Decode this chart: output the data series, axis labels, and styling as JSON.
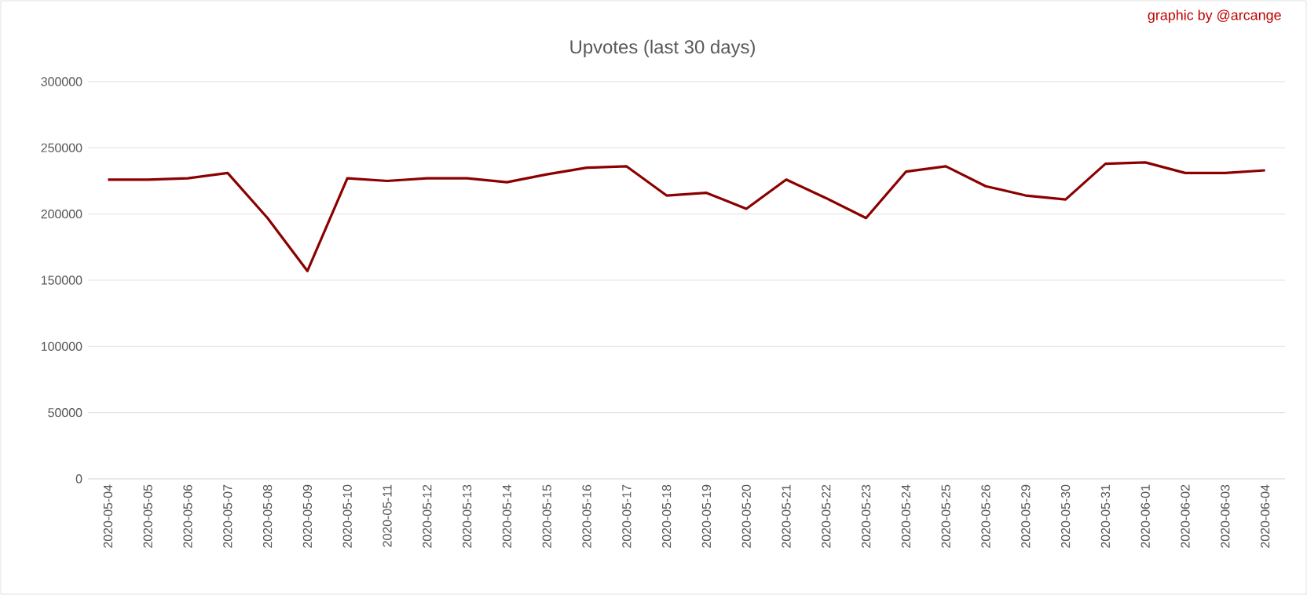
{
  "chart_data": {
    "type": "line",
    "title": "Upvotes (last 30 days)",
    "annotations": [
      "graphic by @arcange"
    ],
    "categories": [
      "2020-05-04",
      "2020-05-05",
      "2020-05-06",
      "2020-05-07",
      "2020-05-08",
      "2020-05-09",
      "2020-05-10",
      "2020-05-11",
      "2020-05-12",
      "2020-05-13",
      "2020-05-14",
      "2020-05-15",
      "2020-05-16",
      "2020-05-17",
      "2020-05-18",
      "2020-05-19",
      "2020-05-20",
      "2020-05-21",
      "2020-05-22",
      "2020-05-23",
      "2020-05-24",
      "2020-05-25",
      "2020-05-26",
      "2020-05-29",
      "2020-05-30",
      "2020-05-31",
      "2020-06-01",
      "2020-06-02",
      "2020-06-03",
      "2020-06-04"
    ],
    "series": [
      {
        "color": "#8b0000",
        "values": [
          226000,
          226000,
          227000,
          231000,
          197000,
          157000,
          227000,
          225000,
          227000,
          227000,
          224000,
          230000,
          235000,
          236000,
          214000,
          216000,
          204000,
          226000,
          212000,
          197000,
          232000,
          236000,
          221000,
          214000,
          211000,
          238000,
          239000,
          231000,
          231000,
          233000
        ]
      }
    ],
    "ylim": [
      0,
      300000
    ],
    "yticks": [
      0,
      50000,
      100000,
      150000,
      200000,
      250000,
      300000
    ],
    "grid": "y",
    "legend": false,
    "marker": "none",
    "line_style": "solid"
  }
}
